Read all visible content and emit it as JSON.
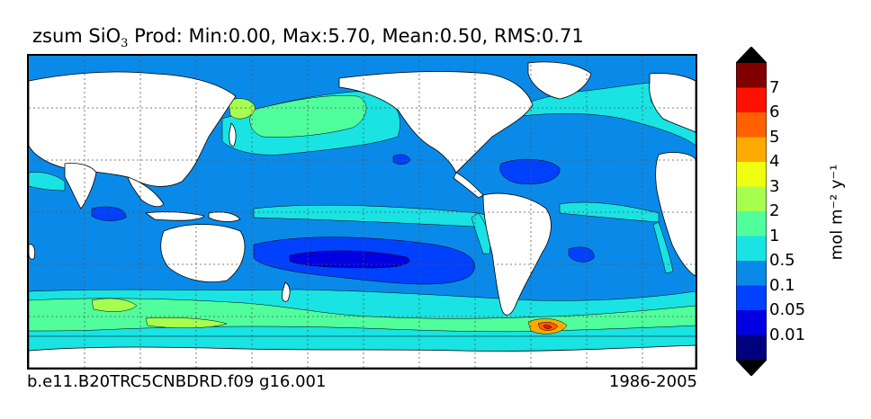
{
  "title": {
    "prefix": "zsum SiO",
    "subscript": "3",
    "suffix": " Prod: Min:0.00, Max:5.70, Mean:0.50, RMS:0.71"
  },
  "caption_left": "b.e11.B20TRC5CNBDRD.f09 g16.001",
  "caption_right": "1986-2005",
  "colorbar": {
    "label": "mol m⁻² y⁻¹",
    "levels": [
      {
        "label": "0.01",
        "color": "#00007f"
      },
      {
        "label": "0.05",
        "color": "#0000e0"
      },
      {
        "label": "0.1",
        "color": "#0040ff"
      },
      {
        "label": "0.5",
        "color": "#0a8ae8"
      },
      {
        "label": "1",
        "color": "#19e3e3"
      },
      {
        "label": "2",
        "color": "#50ff9c"
      },
      {
        "label": "3",
        "color": "#a6ff4f"
      },
      {
        "label": "4",
        "color": "#f0ff10"
      },
      {
        "label": "5",
        "color": "#ffaa00"
      },
      {
        "label": "6",
        "color": "#ff6000"
      },
      {
        "label": "7",
        "color": "#ff1000"
      },
      {
        "label": "",
        "color": "#800000"
      }
    ],
    "under_color": "#000000",
    "over_color": "#000000"
  },
  "map_colors": {
    "land": "#ffffff",
    "ocean_default": "#0a8ae8",
    "grid": "#555555"
  }
}
